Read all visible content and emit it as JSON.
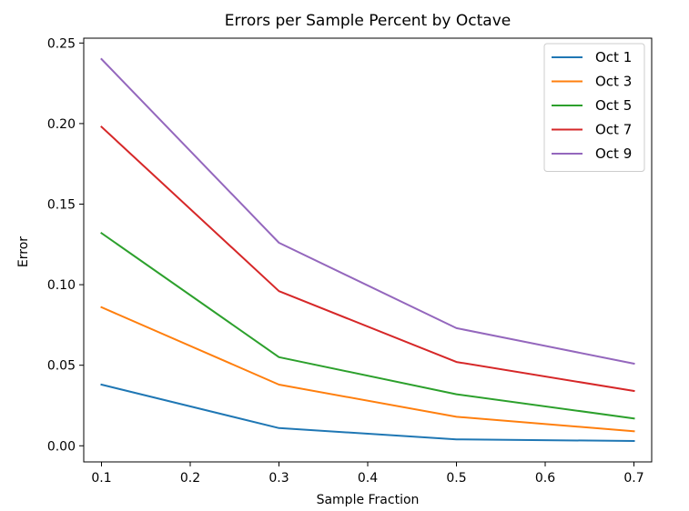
{
  "chart_data": {
    "type": "line",
    "title": "Errors per Sample Percent by Octave",
    "xlabel": "Sample Fraction",
    "ylabel": "Error",
    "x": [
      0.1,
      0.3,
      0.5,
      0.7
    ],
    "xlim": [
      0.08,
      0.72
    ],
    "ylim": [
      -0.01,
      0.253
    ],
    "xticks": [
      0.1,
      0.2,
      0.3,
      0.4,
      0.5,
      0.6,
      0.7
    ],
    "xtick_labels": [
      "0.1",
      "0.2",
      "0.3",
      "0.4",
      "0.5",
      "0.6",
      "0.7"
    ],
    "yticks": [
      0.0,
      0.05,
      0.1,
      0.15,
      0.2,
      0.25
    ],
    "ytick_labels": [
      "0.00",
      "0.05",
      "0.10",
      "0.15",
      "0.20",
      "0.25"
    ],
    "grid": false,
    "legend_position": "top-right",
    "series": [
      {
        "name": "Oct 1",
        "color": "#1f77b4",
        "values": [
          0.038,
          0.011,
          0.004,
          0.003
        ]
      },
      {
        "name": "Oct 3",
        "color": "#ff7f0e",
        "values": [
          0.086,
          0.038,
          0.018,
          0.009
        ]
      },
      {
        "name": "Oct 5",
        "color": "#2ca02c",
        "values": [
          0.132,
          0.055,
          0.032,
          0.017
        ]
      },
      {
        "name": "Oct 7",
        "color": "#d62728",
        "values": [
          0.198,
          0.096,
          0.052,
          0.034
        ]
      },
      {
        "name": "Oct 9",
        "color": "#9467bd",
        "values": [
          0.24,
          0.126,
          0.073,
          0.051
        ]
      }
    ]
  }
}
